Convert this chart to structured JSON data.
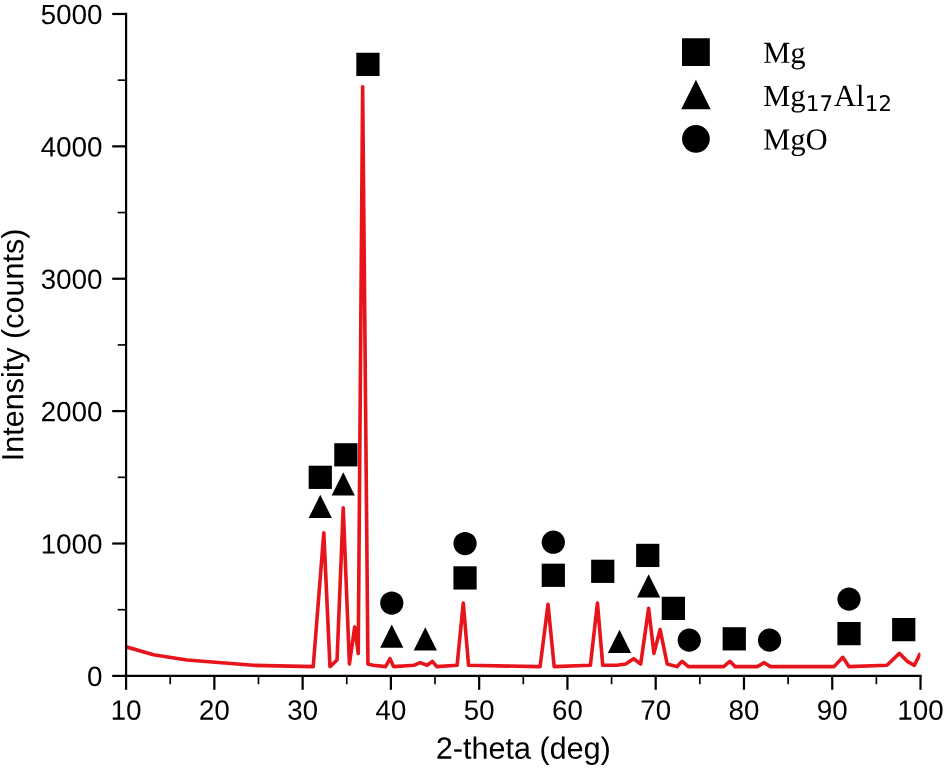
{
  "chart_data": {
    "type": "line",
    "xlabel": "2-theta (deg)",
    "ylabel": "Intensity (counts)",
    "xlim": [
      10,
      100
    ],
    "xticks": [
      10,
      20,
      30,
      40,
      50,
      60,
      70,
      80,
      90,
      100
    ],
    "ylim": [
      0,
      5000
    ],
    "yticks": [
      0,
      1000,
      2000,
      3000,
      4000,
      5000
    ],
    "legend": "top right",
    "grid": false,
    "series": [
      {
        "color": "#e8141c",
        "marker": "none",
        "line_style": "solid",
        "x": [
          10.0,
          13.1,
          16.9,
          24.4,
          31.2,
          32.4,
          33.1,
          33.9,
          34.6,
          35.3,
          35.9,
          36.3,
          36.8,
          37.4,
          38.0,
          39.4,
          39.9,
          40.3,
          42.6,
          43.3,
          44.1,
          44.7,
          45.2,
          47.5,
          48.2,
          48.8,
          56.9,
          57.8,
          58.5,
          62.6,
          63.4,
          64.0,
          65.6,
          66.6,
          67.5,
          68.3,
          69.2,
          69.8,
          70.5,
          71.3,
          72.4,
          73.0,
          73.7,
          77.7,
          78.4,
          79.0,
          81.5,
          82.3,
          83.0,
          90.2,
          91.2,
          91.9,
          96.2,
          97.6,
          98.5,
          99.3,
          99.9
        ],
        "values": [
          220,
          160,
          120,
          80,
          70,
          1080,
          70,
          120,
          1270,
          90,
          370,
          170,
          4450,
          90,
          80,
          70,
          130,
          70,
          80,
          100,
          80,
          110,
          70,
          80,
          550,
          80,
          70,
          540,
          70,
          80,
          550,
          80,
          80,
          90,
          130,
          90,
          510,
          170,
          350,
          90,
          70,
          110,
          70,
          70,
          110,
          70,
          70,
          100,
          70,
          70,
          140,
          70,
          80,
          170,
          110,
          80,
          160
        ]
      },
      {
        "type": "scatter",
        "name": "Mg",
        "color": "#000000",
        "marker": "square",
        "x": [
          32.0,
          34.9,
          37.4,
          48.4,
          58.4,
          64.0,
          69.1,
          72.0,
          78.9,
          91.9,
          98.1
        ],
        "values": [
          1500,
          1670,
          4620,
          740,
          760,
          790,
          910,
          510,
          280,
          320,
          350
        ]
      },
      {
        "type": "scatter",
        "name": "Mg$_{17}$Al$_{12}$",
        "color": "#000000",
        "marker": "triangle",
        "x": [
          32.0,
          34.6,
          40.1,
          43.9,
          65.9,
          69.2
        ],
        "values": [
          1280,
          1450,
          300,
          280,
          260,
          680
        ]
      },
      {
        "type": "scatter",
        "name": "MgO",
        "color": "#000000",
        "marker": "circle",
        "x": [
          40.1,
          48.4,
          58.4,
          73.8,
          82.9,
          91.9
        ],
        "values": [
          550,
          1000,
          1010,
          270,
          270,
          580
        ]
      }
    ]
  }
}
